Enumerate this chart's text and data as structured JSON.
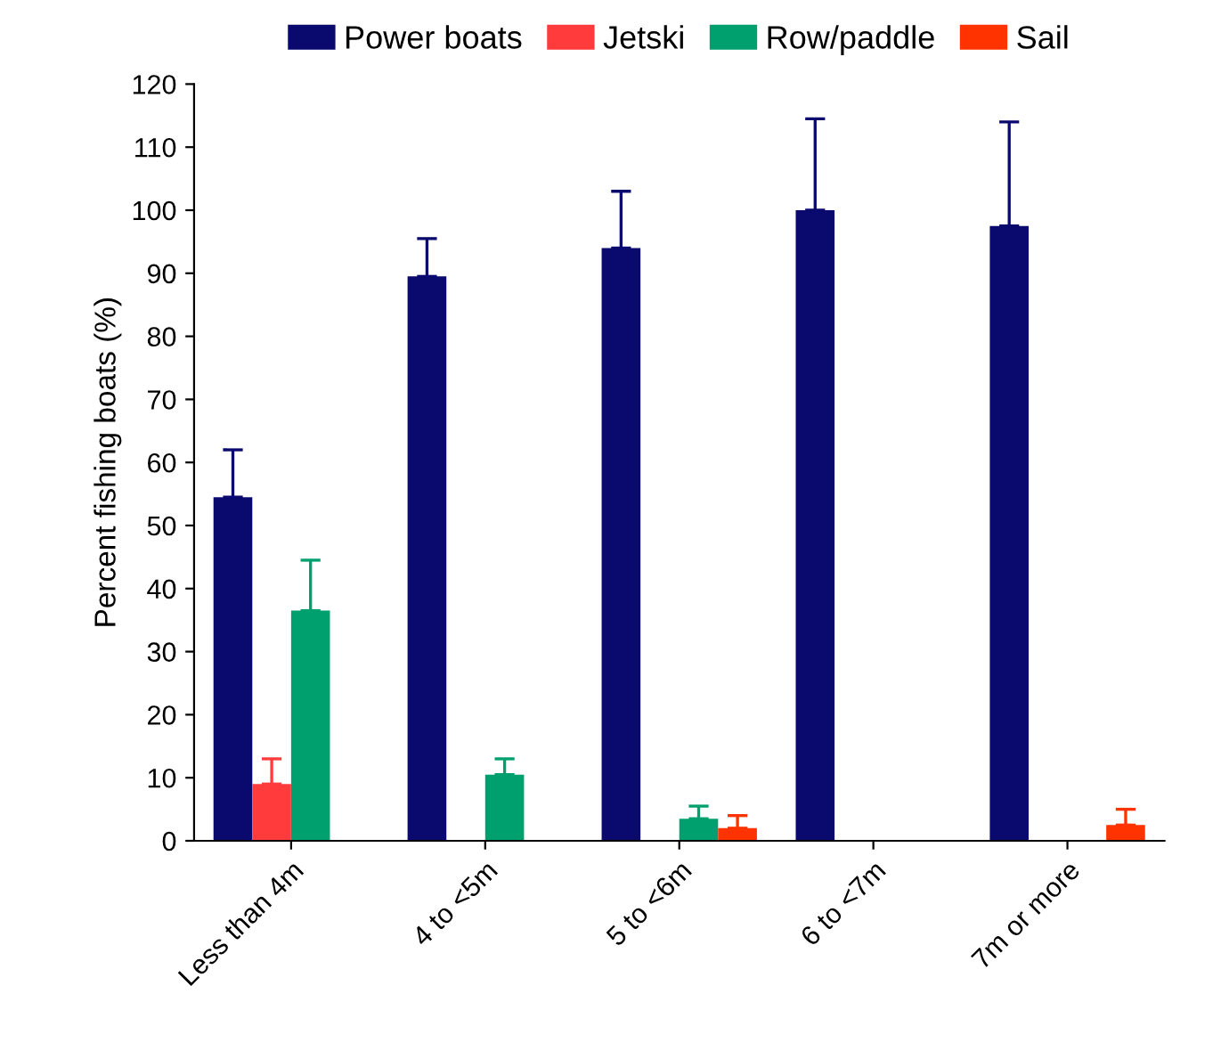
{
  "chart_data": {
    "type": "bar",
    "ylabel": "Percent fishing boats (%)",
    "categories": [
      "Less than 4m",
      "4 to <5m",
      "5 to <6m",
      "6 to <7m",
      "7m or more"
    ],
    "series": [
      {
        "name": "Power boats",
        "color": "#0a0a6e",
        "values": [
          54.5,
          89.5,
          94,
          100,
          97.5
        ],
        "errors": [
          [
            54.5,
            62
          ],
          [
            89.5,
            95.5
          ],
          [
            94,
            103
          ],
          [
            100,
            114.5
          ],
          [
            97.5,
            114
          ]
        ]
      },
      {
        "name": "Jetski",
        "color": "#ff3b3b",
        "values": [
          9,
          0,
          0,
          0,
          0
        ],
        "errors": [
          [
            9,
            13
          ],
          null,
          null,
          null,
          null
        ]
      },
      {
        "name": "Row/paddle",
        "color": "#00a06e",
        "values": [
          36.5,
          10.5,
          3.5,
          0,
          0
        ],
        "errors": [
          [
            36.5,
            44.5
          ],
          [
            10.5,
            13
          ],
          [
            3.5,
            5.5
          ],
          null,
          null
        ]
      },
      {
        "name": "Sail",
        "color": "#ff3300",
        "values": [
          0,
          0,
          2,
          0,
          2.5
        ],
        "errors": [
          null,
          null,
          [
            2,
            4
          ],
          null,
          [
            2.5,
            5
          ]
        ]
      }
    ],
    "ylim": [
      0,
      120
    ],
    "yticks": [
      0,
      10,
      20,
      30,
      40,
      50,
      60,
      70,
      80,
      90,
      100,
      110,
      120
    ],
    "grid": false,
    "legend": "top"
  }
}
